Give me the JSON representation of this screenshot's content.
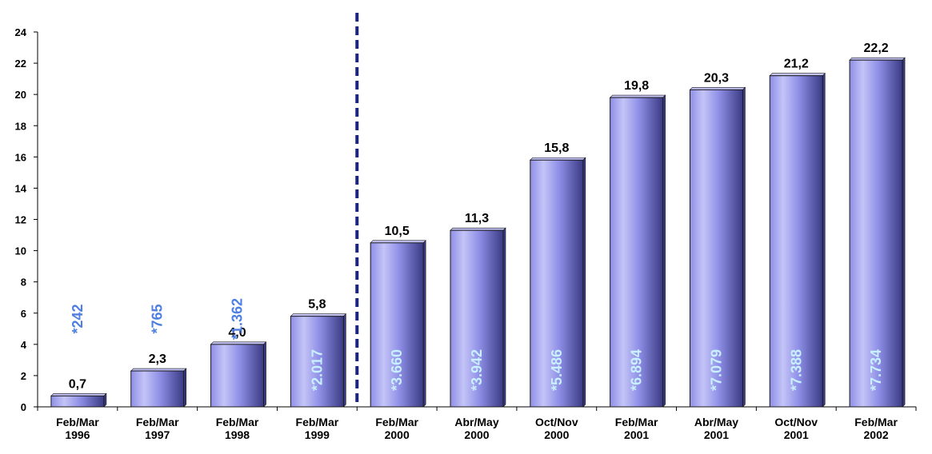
{
  "chart_data": {
    "type": "bar",
    "categories": [
      [
        "Feb/Mar",
        "1996"
      ],
      [
        "Feb/Mar",
        "1997"
      ],
      [
        "Feb/Mar",
        "1998"
      ],
      [
        "Feb/Mar",
        "1999"
      ],
      [
        "Feb/Mar",
        "2000"
      ],
      [
        "Abr/May",
        "2000"
      ],
      [
        "Oct/Nov",
        "2000"
      ],
      [
        "Feb/Mar",
        "2001"
      ],
      [
        "Abr/May",
        "2001"
      ],
      [
        "Oct/Nov",
        "2001"
      ],
      [
        "Feb/Mar",
        "2002"
      ]
    ],
    "values": [
      0.7,
      2.3,
      4.0,
      5.8,
      10.5,
      11.3,
      15.8,
      19.8,
      20.3,
      21.2,
      22.2
    ],
    "value_labels": [
      "0,7",
      "2,3",
      "4,0",
      "5,8",
      "10,5",
      "11,3",
      "15,8",
      "19,8",
      "20,3",
      "21,2",
      "22,2"
    ],
    "secondary_labels": [
      "*242",
      "*765",
      "*1.362",
      "*2.017",
      "*3.660",
      "*3.942",
      "*5.486",
      "*6.894",
      "*7.079",
      "*7.388",
      "*7.734"
    ],
    "y_ticks": [
      "0",
      "2",
      "4",
      "6",
      "8",
      "10",
      "12",
      "14",
      "16",
      "18",
      "20",
      "22",
      "24"
    ],
    "ylim": [
      0,
      24
    ],
    "grid": false,
    "divider_after_category_index": 3,
    "colors": {
      "bar_fill_light": "#c4c4f8",
      "bar_fill_mid": "#8e8ee6",
      "bar_fill_dark": "#3a3a84",
      "bar_stroke": "#1a1a1a",
      "secondary_label_outside": "#4e7fe0",
      "secondary_label_inside": "#c8f0ff",
      "divider": "#1a237e",
      "axis": "#000000",
      "text": "#000000"
    }
  }
}
